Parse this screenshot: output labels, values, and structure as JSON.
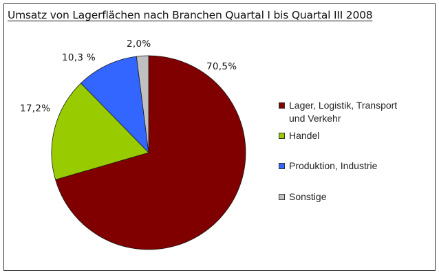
{
  "chart_data": {
    "type": "pie",
    "title": "Umsatz von Lagerflächen nach Branchen Quartal I bis Quartal III 2008",
    "categories": [
      "Lager, Logistik, Transport und Verkehr",
      "Handel",
      "Produktion, Industrie",
      "Sonstige"
    ],
    "values": [
      70.5,
      17.2,
      10.3,
      2.0
    ],
    "value_labels": [
      "70,5%",
      "17,2%",
      "10,3 %",
      "2,0%"
    ],
    "colors": [
      "#800000",
      "#99cc00",
      "#3366ff",
      "#c0c0c0"
    ],
    "start_angle_deg": 0,
    "direction": "clockwise",
    "legend_position": "right"
  },
  "title": "Umsatz von Lagerflächen nach Branchen Quartal I bis Quartal III 2008",
  "labels": {
    "lager": "70,5%",
    "handel": "17,2%",
    "produktion": "10,3 %",
    "sonstige": "2,0%"
  },
  "legend": {
    "items": [
      {
        "line1": "Lager, Logistik, Transport",
        "line2": "und Verkehr",
        "color": "#800000"
      },
      {
        "line1": "Handel",
        "color": "#99cc00"
      },
      {
        "line1": "Produktion, Industrie",
        "color": "#3366ff"
      },
      {
        "line1": "Sonstige",
        "color": "#c0c0c0"
      }
    ]
  }
}
